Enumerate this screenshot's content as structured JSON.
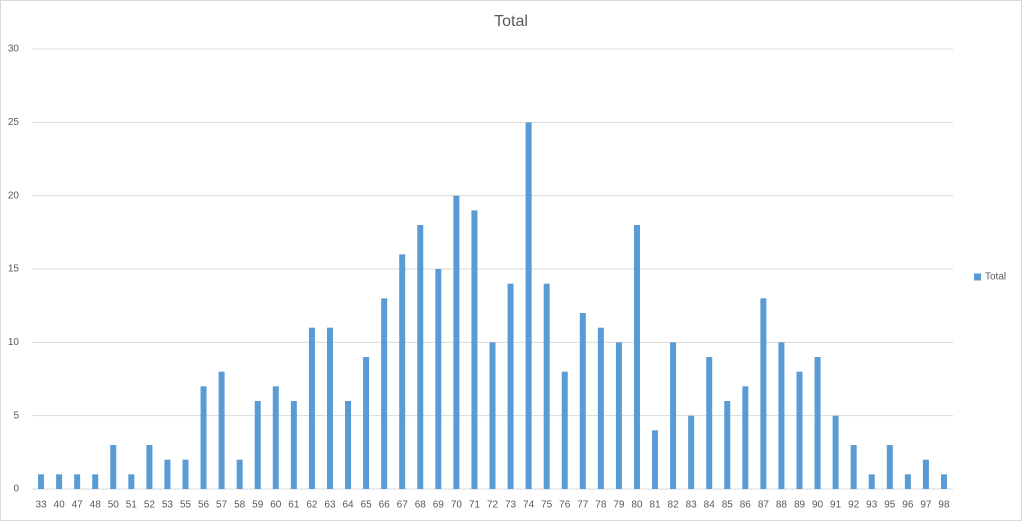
{
  "chart_data": {
    "type": "bar",
    "title": "Total",
    "categories": [
      "33",
      "40",
      "47",
      "48",
      "50",
      "51",
      "52",
      "53",
      "55",
      "56",
      "57",
      "58",
      "59",
      "60",
      "61",
      "62",
      "63",
      "64",
      "65",
      "66",
      "67",
      "68",
      "69",
      "70",
      "71",
      "72",
      "73",
      "74",
      "75",
      "76",
      "77",
      "78",
      "79",
      "80",
      "81",
      "82",
      "83",
      "84",
      "85",
      "86",
      "87",
      "88",
      "89",
      "90",
      "91",
      "92",
      "93",
      "95",
      "96",
      "97",
      "98"
    ],
    "series": [
      {
        "name": "Total",
        "color": "#5b9bd5",
        "values": [
          1,
          1,
          1,
          1,
          3,
          1,
          3,
          2,
          2,
          7,
          8,
          2,
          6,
          7,
          6,
          11,
          11,
          6,
          9,
          13,
          16,
          18,
          15,
          20,
          19,
          10,
          14,
          25,
          14,
          8,
          12,
          11,
          10,
          18,
          4,
          10,
          5,
          9,
          6,
          7,
          13,
          10,
          8,
          9,
          5,
          3,
          1,
          3,
          1,
          2,
          1
        ]
      }
    ],
    "ylim": [
      0,
      30
    ],
    "yticks": [
      0,
      5,
      10,
      15,
      20,
      25,
      30
    ],
    "grid": true,
    "legend": "right"
  }
}
